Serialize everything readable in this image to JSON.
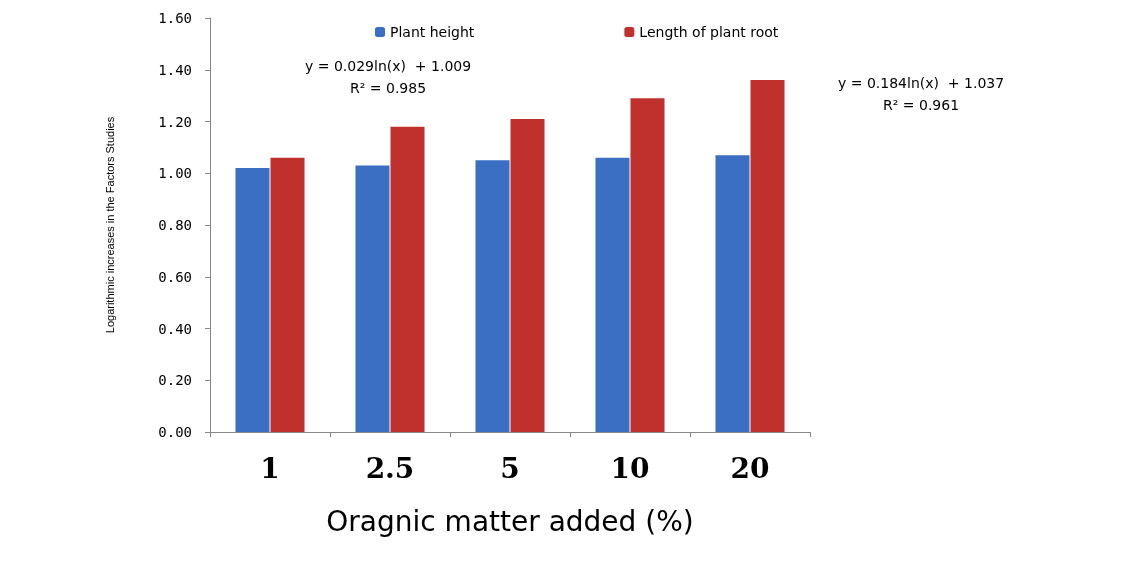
{
  "chart_data": {
    "type": "bar",
    "xlabel": "Oragnic matter added (%)",
    "ylabel": "Logarithmic increases in the Factors Studies",
    "categories": [
      "1",
      "2.5",
      "5",
      "10",
      "20"
    ],
    "series": [
      {
        "name": "Plant height",
        "color": "#3a6fc4",
        "values": [
          1.02,
          1.03,
          1.05,
          1.06,
          1.07
        ]
      },
      {
        "name": "Length of plant root",
        "color": "#c0302c",
        "values": [
          1.06,
          1.18,
          1.21,
          1.29,
          1.36
        ]
      }
    ],
    "ylim": [
      0,
      1.6
    ],
    "yticks": [
      {
        "value": 0,
        "label": "0.00"
      },
      {
        "value": 0.2,
        "label": "0.20"
      },
      {
        "value": 0.4,
        "label": "0.40"
      },
      {
        "value": 0.6,
        "label": "0.60"
      },
      {
        "value": 0.8,
        "label": "0.80"
      },
      {
        "value": 1,
        "label": "1.00"
      },
      {
        "value": 1.2,
        "label": "1.20"
      },
      {
        "value": 1.4,
        "label": "1.40"
      },
      {
        "value": 1.6,
        "label": "1.60"
      }
    ],
    "annotations": [
      "y = 0.029ln(x)  + 1.009\nR² = 0.985",
      "y = 0.184ln(x)  + 1.037\nR² = 0.961"
    ],
    "grid": false,
    "legend": "top"
  }
}
